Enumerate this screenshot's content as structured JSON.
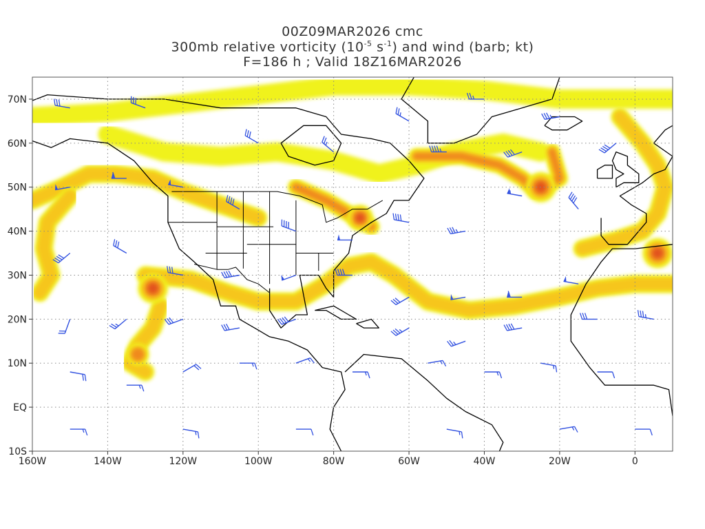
{
  "title": {
    "line1": "00Z09MAR2026 cmc",
    "line2_prefix": "300mb relative vorticity (10",
    "line2_exp1": "-5",
    "line2_mid": " s",
    "line2_exp2": "-1",
    "line2_suffix": ") and wind (barb; kt)",
    "line3": "F=186 h ; Valid 18Z16MAR2026"
  },
  "axes": {
    "lon_range": [
      -160,
      10
    ],
    "lat_range": [
      -10,
      75
    ],
    "x_ticks": [
      {
        "lon": -160,
        "label": "160W"
      },
      {
        "lon": -140,
        "label": "140W"
      },
      {
        "lon": -120,
        "label": "120W"
      },
      {
        "lon": -100,
        "label": "100W"
      },
      {
        "lon": -80,
        "label": "80W"
      },
      {
        "lon": -60,
        "label": "60W"
      },
      {
        "lon": -40,
        "label": "40W"
      },
      {
        "lon": -20,
        "label": "20W"
      },
      {
        "lon": 0,
        "label": "0"
      }
    ],
    "y_ticks": [
      {
        "lat": -10,
        "label": "10S"
      },
      {
        "lat": 0,
        "label": "EQ"
      },
      {
        "lat": 10,
        "label": "10N"
      },
      {
        "lat": 20,
        "label": "20N"
      },
      {
        "lat": 30,
        "label": "30N"
      },
      {
        "lat": 40,
        "label": "40N"
      },
      {
        "lat": 50,
        "label": "50N"
      },
      {
        "lat": 60,
        "label": "60N"
      },
      {
        "lat": 70,
        "label": "70N"
      }
    ],
    "grid": "dotted"
  },
  "colors": {
    "shade_low": "#f0f21a",
    "shade_mid": "#f6c61a",
    "shade_high": "#f08a1c",
    "shade_max": "#e2531a",
    "barb": "#3050e0",
    "coast": "#000000"
  },
  "vorticity_bands": [
    {
      "name": "north-pacific-jet",
      "level": 2,
      "pts": [
        [
          -160,
          47
        ],
        [
          -152,
          50
        ],
        [
          -145,
          53
        ],
        [
          -138,
          53
        ],
        [
          -128,
          52
        ],
        [
          -120,
          49
        ],
        [
          -110,
          46
        ],
        [
          -100,
          43
        ]
      ]
    },
    {
      "name": "pacific-trough-west",
      "level": 2,
      "pts": [
        [
          -150,
          48
        ],
        [
          -156,
          42
        ],
        [
          -157,
          36
        ],
        [
          -155,
          30
        ],
        [
          -158,
          26
        ]
      ]
    },
    {
      "name": "subtropical-jet",
      "level": 2,
      "pts": [
        [
          -130,
          30
        ],
        [
          -118,
          29
        ],
        [
          -108,
          26
        ],
        [
          -100,
          24
        ],
        [
          -90,
          24
        ],
        [
          -82,
          28
        ],
        [
          -76,
          32
        ],
        [
          -70,
          33
        ],
        [
          -64,
          30
        ],
        [
          -55,
          24
        ],
        [
          -44,
          22
        ],
        [
          -32,
          23
        ],
        [
          -20,
          25
        ],
        [
          -10,
          27
        ],
        [
          0,
          28
        ],
        [
          10,
          28
        ]
      ]
    },
    {
      "name": "canada-band",
      "level": 1,
      "pts": [
        [
          -140,
          62
        ],
        [
          -125,
          58
        ],
        [
          -110,
          57
        ],
        [
          -95,
          58
        ],
        [
          -80,
          56
        ],
        [
          -68,
          53
        ],
        [
          -58,
          55
        ],
        [
          -48,
          58
        ],
        [
          -35,
          60
        ],
        [
          -25,
          58
        ]
      ]
    },
    {
      "name": "arctic-band",
      "level": 1,
      "pts": [
        [
          -160,
          66
        ],
        [
          -140,
          67
        ],
        [
          -120,
          69
        ],
        [
          -100,
          71
        ],
        [
          -80,
          73
        ],
        [
          -60,
          73
        ],
        [
          -40,
          72
        ],
        [
          -20,
          70
        ],
        [
          -5,
          70
        ],
        [
          10,
          70
        ]
      ]
    },
    {
      "name": "east-coast-trough",
      "level": 3,
      "pts": [
        [
          -90,
          50
        ],
        [
          -82,
          47
        ],
        [
          -76,
          44
        ],
        [
          -70,
          41
        ]
      ]
    },
    {
      "name": "atlantic-low",
      "level": 3,
      "pts": [
        [
          -58,
          57
        ],
        [
          -46,
          57
        ],
        [
          -36,
          55
        ],
        [
          -30,
          52
        ],
        [
          -26,
          49
        ],
        [
          -20,
          52
        ],
        [
          -22,
          58
        ]
      ]
    },
    {
      "name": "pacific-loop",
      "level": 2,
      "pts": [
        [
          -126,
          23
        ],
        [
          -128,
          18
        ],
        [
          -132,
          14
        ],
        [
          -134,
          10
        ],
        [
          -130,
          8
        ]
      ]
    },
    {
      "name": "europe-band",
      "level": 2,
      "pts": [
        [
          -4,
          66
        ],
        [
          2,
          60
        ],
        [
          6,
          55
        ],
        [
          8,
          50
        ],
        [
          6,
          44
        ],
        [
          2,
          40
        ],
        [
          -5,
          38
        ],
        [
          -14,
          36
        ]
      ]
    }
  ],
  "vorticity_spots": [
    {
      "name": "pacific-max",
      "lon": -128,
      "lat": 27,
      "r": 4,
      "level": 4
    },
    {
      "name": "atlantic-max",
      "lon": -25,
      "lat": 50,
      "r": 4,
      "level": 4
    },
    {
      "name": "newengland-max",
      "lon": -73,
      "lat": 43,
      "r": 3.5,
      "level": 4
    },
    {
      "name": "iberia-max",
      "lon": 6,
      "lat": 35,
      "r": 4,
      "level": 4
    },
    {
      "name": "eastpac-blob",
      "lon": -132,
      "lat": 12,
      "r": 3,
      "level": 3
    }
  ],
  "barbs": [
    {
      "lon": -150,
      "lat": 50,
      "dir": 260,
      "spd": 50
    },
    {
      "lon": -135,
      "lat": 52,
      "dir": 270,
      "spd": 60
    },
    {
      "lon": -120,
      "lat": 50,
      "dir": 280,
      "spd": 50
    },
    {
      "lon": -105,
      "lat": 45,
      "dir": 300,
      "spd": 40
    },
    {
      "lon": -90,
      "lat": 40,
      "dir": 290,
      "spd": 40
    },
    {
      "lon": -75,
      "lat": 38,
      "dir": 270,
      "spd": 50
    },
    {
      "lon": -60,
      "lat": 42,
      "dir": 280,
      "spd": 40
    },
    {
      "lon": -45,
      "lat": 40,
      "dir": 260,
      "spd": 35
    },
    {
      "lon": -30,
      "lat": 48,
      "dir": 280,
      "spd": 55
    },
    {
      "lon": -15,
      "lat": 45,
      "dir": 320,
      "spd": 40
    },
    {
      "lon": -150,
      "lat": 35,
      "dir": 230,
      "spd": 40
    },
    {
      "lon": -135,
      "lat": 35,
      "dir": 300,
      "spd": 30
    },
    {
      "lon": -120,
      "lat": 30,
      "dir": 280,
      "spd": 30
    },
    {
      "lon": -105,
      "lat": 30,
      "dir": 260,
      "spd": 40
    },
    {
      "lon": -90,
      "lat": 30,
      "dir": 250,
      "spd": 50
    },
    {
      "lon": -75,
      "lat": 30,
      "dir": 270,
      "spd": 40
    },
    {
      "lon": -60,
      "lat": 25,
      "dir": 240,
      "spd": 30
    },
    {
      "lon": -45,
      "lat": 25,
      "dir": 260,
      "spd": 50
    },
    {
      "lon": -30,
      "lat": 25,
      "dir": 270,
      "spd": 60
    },
    {
      "lon": -15,
      "lat": 28,
      "dir": 280,
      "spd": 50
    },
    {
      "lon": -150,
      "lat": 20,
      "dir": 200,
      "spd": 20
    },
    {
      "lon": -135,
      "lat": 20,
      "dir": 230,
      "spd": 25
    },
    {
      "lon": -120,
      "lat": 20,
      "dir": 250,
      "spd": 30
    },
    {
      "lon": -105,
      "lat": 18,
      "dir": 260,
      "spd": 30
    },
    {
      "lon": -90,
      "lat": 20,
      "dir": 250,
      "spd": 40
    },
    {
      "lon": -60,
      "lat": 18,
      "dir": 240,
      "spd": 35
    },
    {
      "lon": -45,
      "lat": 15,
      "dir": 250,
      "spd": 25
    },
    {
      "lon": -30,
      "lat": 18,
      "dir": 260,
      "spd": 40
    },
    {
      "lon": -10,
      "lat": 20,
      "dir": 270,
      "spd": 30
    },
    {
      "lon": 5,
      "lat": 20,
      "dir": 280,
      "spd": 35
    },
    {
      "lon": -150,
      "lat": 8,
      "dir": 100,
      "spd": 20
    },
    {
      "lon": -135,
      "lat": 5,
      "dir": 90,
      "spd": 15
    },
    {
      "lon": -120,
      "lat": 8,
      "dir": 60,
      "spd": 20
    },
    {
      "lon": -105,
      "lat": 10,
      "dir": 90,
      "spd": 15
    },
    {
      "lon": -90,
      "lat": 10,
      "dir": 70,
      "spd": 15
    },
    {
      "lon": -75,
      "lat": 8,
      "dir": 90,
      "spd": 15
    },
    {
      "lon": -55,
      "lat": 10,
      "dir": 80,
      "spd": 15
    },
    {
      "lon": -40,
      "lat": 8,
      "dir": 90,
      "spd": 15
    },
    {
      "lon": -25,
      "lat": 10,
      "dir": 100,
      "spd": 15
    },
    {
      "lon": -10,
      "lat": 8,
      "dir": 90,
      "spd": 10
    },
    {
      "lon": -150,
      "lat": -5,
      "dir": 90,
      "spd": 15
    },
    {
      "lon": -120,
      "lat": -5,
      "dir": 100,
      "spd": 15
    },
    {
      "lon": -90,
      "lat": -5,
      "dir": 90,
      "spd": 10
    },
    {
      "lon": -50,
      "lat": -5,
      "dir": 100,
      "spd": 15
    },
    {
      "lon": -20,
      "lat": -5,
      "dir": 80,
      "spd": 15
    },
    {
      "lon": 0,
      "lat": -5,
      "dir": 90,
      "spd": 10
    },
    {
      "lon": -150,
      "lat": 68,
      "dir": 280,
      "spd": 30
    },
    {
      "lon": -130,
      "lat": 68,
      "dir": 290,
      "spd": 30
    },
    {
      "lon": -60,
      "lat": 65,
      "dir": 300,
      "spd": 25
    },
    {
      "lon": -40,
      "lat": 70,
      "dir": 270,
      "spd": 25
    },
    {
      "lon": -20,
      "lat": 66,
      "dir": 260,
      "spd": 35
    },
    {
      "lon": -5,
      "lat": 60,
      "dir": 230,
      "spd": 40
    },
    {
      "lon": -100,
      "lat": 60,
      "dir": 300,
      "spd": 30
    },
    {
      "lon": -80,
      "lat": 58,
      "dir": 310,
      "spd": 25
    },
    {
      "lon": -50,
      "lat": 58,
      "dir": 270,
      "spd": 45
    },
    {
      "lon": -30,
      "lat": 58,
      "dir": 250,
      "spd": 40
    }
  ]
}
